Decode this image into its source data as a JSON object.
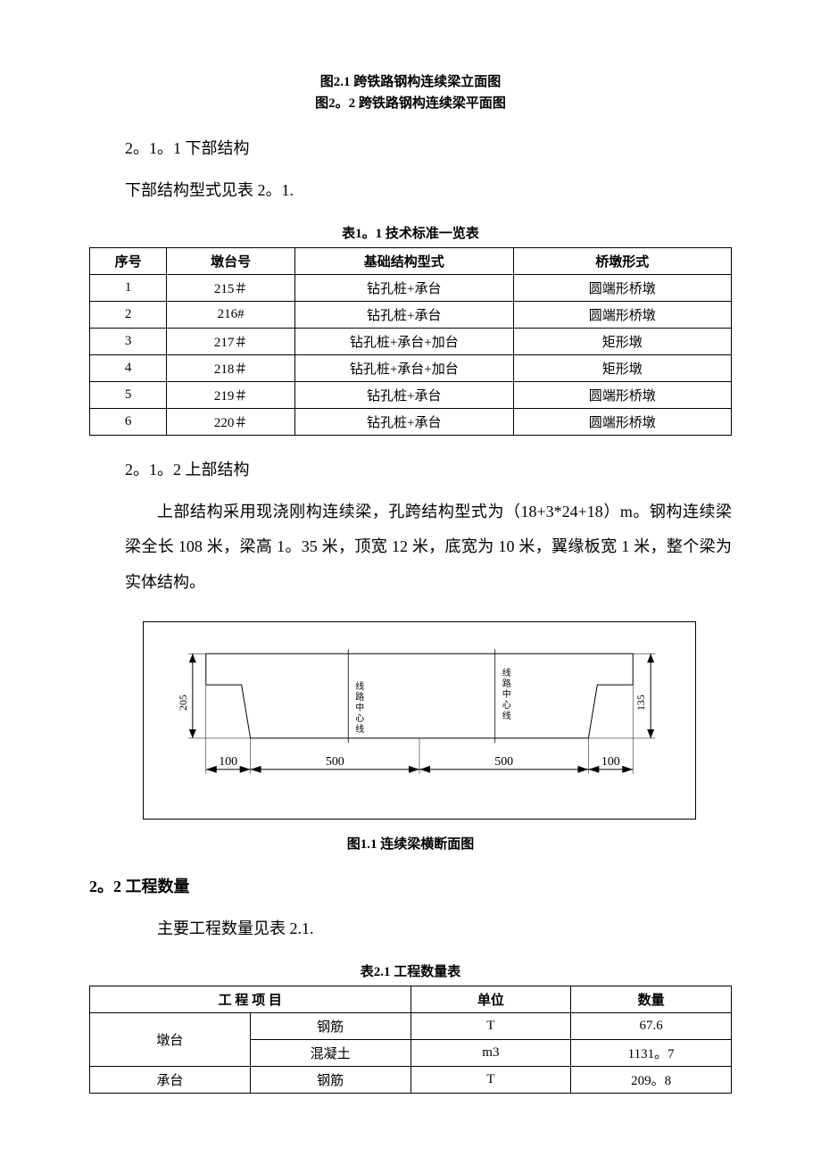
{
  "captions": {
    "fig21": "图2.1  跨铁路钢构连续梁立面图",
    "fig22": "图2。2  跨铁路钢构连续梁平面图",
    "fig11": "图1.1  连续梁横断面图",
    "table11": "表1。1  技术标准一览表",
    "table21": "表2.1  工程数量表"
  },
  "headings": {
    "h211": "2。1。1 下部结构",
    "h212": "2。1。2 上部结构",
    "h22": "2。2 工程数量"
  },
  "paragraphs": {
    "p1": "下部结构型式见表 2。1.",
    "p2": "上部结构采用现浇刚构连续梁，孔跨结构型式为（18+3*24+18）m。钢构连续梁梁全长 108 米，梁高 1。35 米，顶宽 12 米，底宽为 10 米，翼缘板宽 1 米，整个梁为实体结构。",
    "p3": "主要工程数量见表 2.1."
  },
  "table1": {
    "headers": [
      "序号",
      "墩台号",
      "基础结构型式",
      "桥墩形式"
    ],
    "rows": [
      [
        "1",
        "215＃",
        "钻孔桩+承台",
        "圆端形桥墩"
      ],
      [
        "2",
        "216#",
        "钻孔桩+承台",
        "圆端形桥墩"
      ],
      [
        "3",
        "217＃",
        "钻孔桩+承台+加台",
        "矩形墩"
      ],
      [
        "4",
        "218＃",
        "钻孔桩+承台+加台",
        "矩形墩"
      ],
      [
        "5",
        "219＃",
        "钻孔桩+承台",
        "圆端形桥墩"
      ],
      [
        "6",
        "220＃",
        "钻孔桩+承台",
        "圆端形桥墩"
      ]
    ]
  },
  "table2": {
    "headers": [
      "工 程 项 目",
      "单位",
      "数量"
    ],
    "group_labels": [
      "墩台",
      "承台"
    ],
    "sub_rows": [
      [
        "钢筋",
        "T",
        "67.6"
      ],
      [
        "混凝土",
        "m3",
        "1131。7"
      ],
      [
        "钢筋",
        "T",
        "209。8"
      ]
    ]
  },
  "diagram": {
    "top_width_left": "500",
    "top_width_right": "500",
    "flange_left": "100",
    "flange_right": "100",
    "height_left": "205",
    "height_right": "135",
    "centerline_label": "线路中心线",
    "colors": {
      "outline": "#000000",
      "background": "#ffffff"
    },
    "line_width": 1
  }
}
